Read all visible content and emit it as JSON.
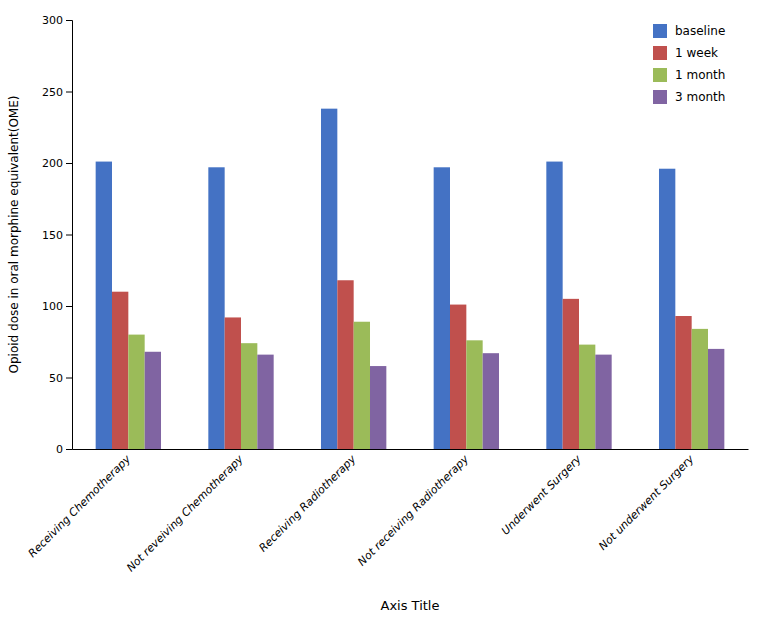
{
  "chart_data": {
    "type": "bar",
    "categories": [
      "Receiving Chemotherapy",
      "Not reveiving Chemotherapy",
      "Receiving Radiotherapy",
      "Not receiving Radiotherapy",
      "Underwent Surgery",
      "Not underwent Surgery"
    ],
    "series": [
      {
        "name": "baseline",
        "color": "#4472C4",
        "values": [
          201,
          197,
          238,
          197,
          201,
          196
        ]
      },
      {
        "name": "1 week",
        "color": "#C0504D",
        "values": [
          110,
          92,
          118,
          101,
          105,
          93
        ]
      },
      {
        "name": "1 month",
        "color": "#9BBB59",
        "values": [
          80,
          74,
          89,
          76,
          73,
          84
        ]
      },
      {
        "name": "3 month",
        "color": "#8064A2",
        "values": [
          68,
          66,
          58,
          67,
          66,
          70
        ]
      }
    ],
    "xlabel": "Axis Title",
    "ylabel": "Opioid dose in oral morphine equivalent(OME)",
    "ylim": [
      0,
      300
    ],
    "yticks": [
      0,
      50,
      100,
      150,
      200,
      250,
      300
    ],
    "grid": false,
    "legend": "upper right"
  }
}
